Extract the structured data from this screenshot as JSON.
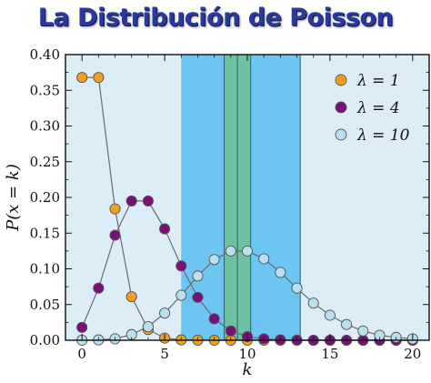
{
  "title": "La Distribución de Poisson",
  "chart_data": {
    "type": "scatter",
    "xlabel": "k",
    "ylabel": "P(x = k)",
    "xlim": [
      -1.0,
      21.0
    ],
    "ylim": [
      0,
      0.4
    ],
    "xticks": [
      0,
      5,
      10,
      15,
      20
    ],
    "yticks": [
      0.0,
      0.05,
      0.1,
      0.15,
      0.2,
      0.25,
      0.3,
      0.35,
      0.4
    ],
    "ytick_labels": [
      "0.00",
      "0.05",
      "0.10",
      "0.15",
      "0.20",
      "0.25",
      "0.30",
      "0.35",
      "0.40"
    ],
    "legend_position": "top-right",
    "bands": [
      {
        "from": 6.0,
        "to": 13.2,
        "color": "#6cc6f1"
      },
      {
        "from": 8.6,
        "to": 10.2,
        "color": "#6fc1a4"
      }
    ],
    "band_lines": [
      8.6,
      9.4,
      10.2,
      13.2
    ],
    "background_color": "#dcedf8",
    "series": [
      {
        "name": "λ = 1",
        "color": "#f0a020",
        "x": [
          0,
          1,
          2,
          3,
          4,
          5,
          6,
          7,
          8,
          9,
          10,
          11,
          12,
          13,
          14,
          15,
          16,
          17,
          18,
          19,
          20
        ],
        "y": [
          0.368,
          0.368,
          0.184,
          0.061,
          0.015,
          0.003,
          0.0005,
          0.0001,
          0,
          0,
          0,
          0,
          0,
          0,
          0,
          0,
          0,
          0,
          0,
          0,
          0
        ]
      },
      {
        "name": "λ = 4",
        "color": "#7a0f7a",
        "x": [
          0,
          1,
          2,
          3,
          4,
          5,
          6,
          7,
          8,
          9,
          10,
          11,
          12,
          13,
          14,
          15,
          16,
          17,
          18,
          19,
          20
        ],
        "y": [
          0.018,
          0.073,
          0.147,
          0.195,
          0.195,
          0.156,
          0.104,
          0.06,
          0.03,
          0.013,
          0.005,
          0.002,
          0.0006,
          0.0002,
          0,
          0,
          0,
          0,
          0,
          0,
          0
        ]
      },
      {
        "name": "λ = 10",
        "color": "#b8e0ee",
        "x": [
          0,
          1,
          2,
          3,
          4,
          5,
          6,
          7,
          8,
          9,
          10,
          11,
          12,
          13,
          14,
          15,
          16,
          17,
          18,
          19,
          20
        ],
        "y": [
          5e-05,
          0.0005,
          0.002,
          0.008,
          0.019,
          0.038,
          0.063,
          0.09,
          0.113,
          0.125,
          0.125,
          0.114,
          0.095,
          0.073,
          0.052,
          0.035,
          0.022,
          0.013,
          0.007,
          0.004,
          0.002
        ]
      }
    ]
  }
}
